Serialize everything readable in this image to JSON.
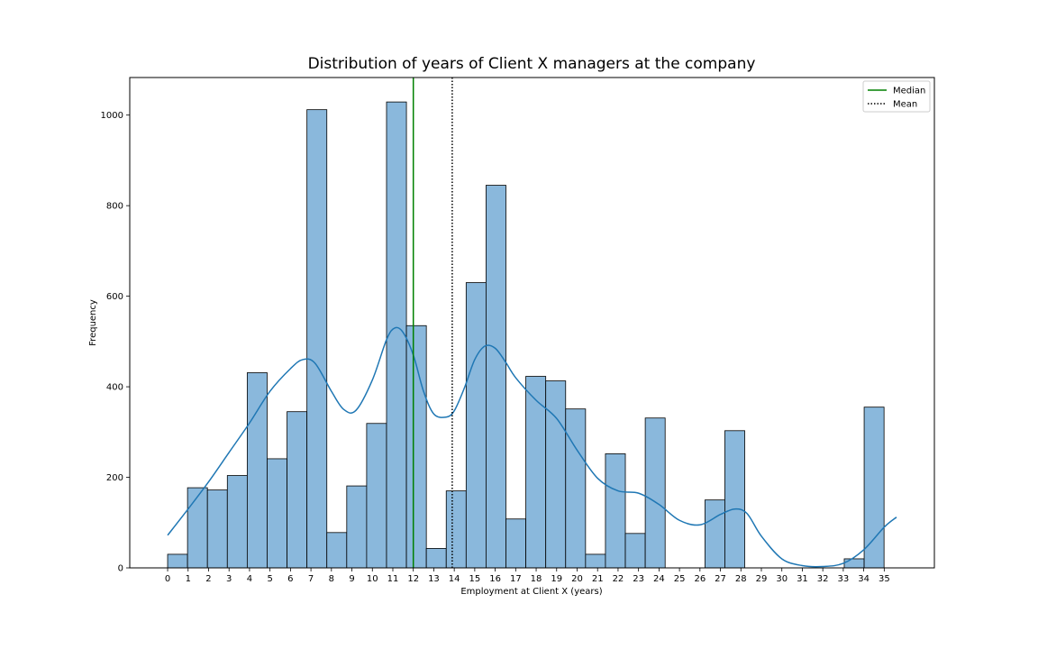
{
  "chart_data": {
    "type": "bar",
    "title": "Distribution of years of Client X managers at the company",
    "xlabel": "Employment at Client X (years)",
    "ylabel": "Frequency",
    "xlim": [
      -1.85,
      37.45
    ],
    "ylim": [
      0,
      1083
    ],
    "x_ticks": [
      "0",
      "1",
      "2",
      "3",
      "4",
      "5",
      "6",
      "7",
      "8",
      "9",
      "10",
      "11",
      "12",
      "13",
      "14",
      "15",
      "16",
      "17",
      "18",
      "19",
      "20",
      "21",
      "22",
      "23",
      "24",
      "25",
      "26",
      "27",
      "28",
      "29",
      "30",
      "31",
      "32",
      "33",
      "34",
      "35"
    ],
    "y_ticks": [
      0,
      200,
      400,
      600,
      800,
      1000
    ],
    "bins": {
      "start": 0,
      "width": 0.972,
      "values": [
        30,
        177,
        172,
        204,
        431,
        241,
        345,
        1012,
        78,
        181,
        319,
        1029,
        535,
        43,
        170,
        630,
        845,
        108,
        423,
        413,
        351,
        30,
        252,
        76,
        331,
        0,
        0,
        150,
        303,
        0,
        0,
        0,
        0,
        0,
        20,
        355
      ]
    },
    "bar_color": "#8ab8dc",
    "kde": {
      "color": "#1f77b4",
      "x": [
        0,
        1,
        2,
        3,
        4,
        5,
        6,
        6.6,
        7.2,
        8,
        8.6,
        9.2,
        10,
        10.7,
        11.1,
        11.5,
        12,
        12.5,
        13,
        13.6,
        14,
        14.5,
        15,
        15.5,
        16,
        16.5,
        17,
        18,
        19,
        20,
        21,
        22,
        23,
        24,
        25,
        26,
        27,
        27.7,
        28.3,
        29,
        30,
        31,
        32,
        33,
        34,
        35,
        35.6
      ],
      "y": [
        72,
        130,
        190,
        255,
        320,
        390,
        440,
        460,
        452,
        390,
        350,
        348,
        415,
        505,
        530,
        520,
        470,
        390,
        340,
        333,
        347,
        398,
        460,
        490,
        485,
        455,
        420,
        370,
        330,
        260,
        198,
        170,
        165,
        140,
        105,
        95,
        118,
        130,
        120,
        70,
        20,
        5,
        3,
        10,
        40,
        90,
        112
      ]
    },
    "median": {
      "label": "Median",
      "value": 12,
      "color": "#008000"
    },
    "mean": {
      "label": "Mean",
      "value": 13.9,
      "color": "#000000"
    },
    "legend": {
      "placement": "top-right",
      "entries": [
        "Median",
        "Mean"
      ]
    },
    "grid": false
  }
}
